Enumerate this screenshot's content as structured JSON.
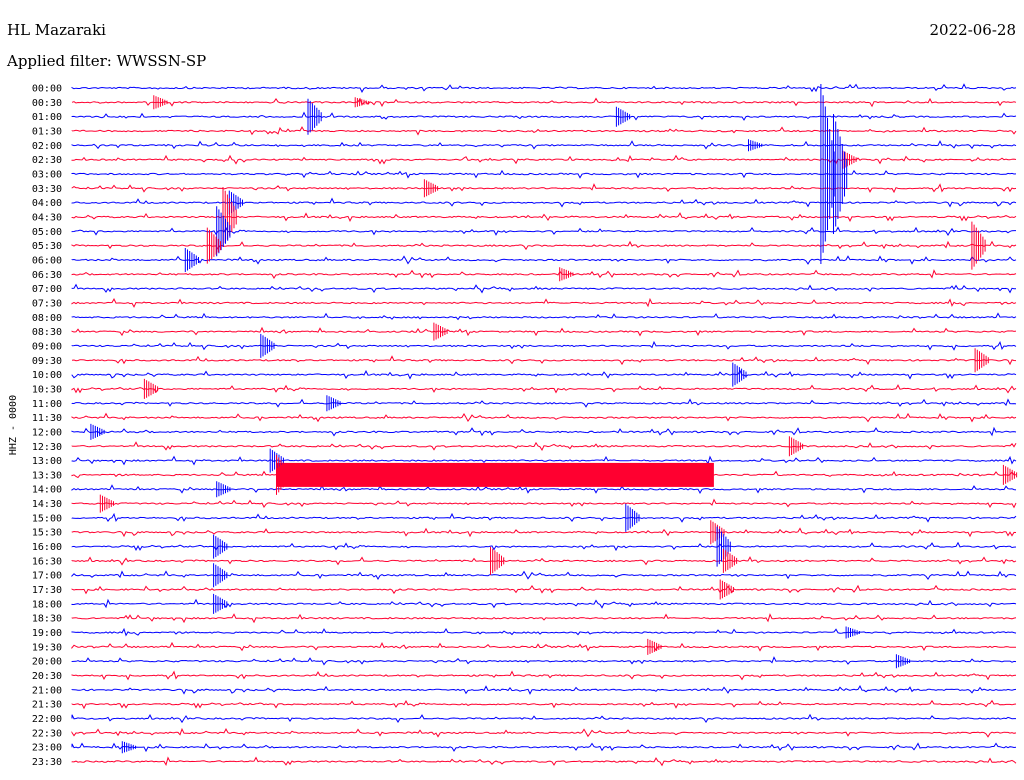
{
  "header": {
    "station": "HL Mazaraki",
    "date": "2022-06-28",
    "filter": "Applied filter: WWSSN-SP"
  },
  "chart_data": {
    "type": "line",
    "title": "HL Mazaraki",
    "subtitle": "Applied filter: WWSSN-SP",
    "date": "2022-06-28",
    "ylabel": "HHZ - 0000",
    "grid": false,
    "trace_colors": [
      "#0000ff",
      "#ff0030"
    ],
    "row_labels": [
      "00:00",
      "00:30",
      "01:00",
      "01:30",
      "02:00",
      "02:30",
      "03:00",
      "03:30",
      "04:00",
      "04:30",
      "05:00",
      "05:30",
      "06:00",
      "06:30",
      "07:00",
      "07:30",
      "08:00",
      "08:30",
      "09:00",
      "09:30",
      "10:00",
      "10:30",
      "11:00",
      "11:30",
      "12:00",
      "12:30",
      "13:00",
      "13:30",
      "14:00",
      "14:30",
      "15:00",
      "15:30",
      "16:00",
      "16:30",
      "17:00",
      "17:30",
      "18:00",
      "18:30",
      "19:00",
      "19:30",
      "20:00",
      "20:30",
      "21:00",
      "21:30",
      "22:00",
      "22:30",
      "23:00",
      "23:30"
    ],
    "x_range_minutes": [
      0,
      30
    ],
    "events": [
      {
        "row": 1,
        "minute": 2.6,
        "amp": 7
      },
      {
        "row": 1,
        "minute": 9.0,
        "amp": 5
      },
      {
        "row": 2,
        "minute": 7.5,
        "amp": 18
      },
      {
        "row": 2,
        "minute": 17.3,
        "amp": 10
      },
      {
        "row": 4,
        "minute": 21.5,
        "amp": 6
      },
      {
        "row": 5,
        "minute": 24.5,
        "amp": 9
      },
      {
        "row": 6,
        "minute": 23.8,
        "amp": 90
      },
      {
        "row": 6,
        "minute": 24.2,
        "amp": 60
      },
      {
        "row": 7,
        "minute": 11.2,
        "amp": 9
      },
      {
        "row": 8,
        "minute": 5.0,
        "amp": 12
      },
      {
        "row": 9,
        "minute": 4.8,
        "amp": 30
      },
      {
        "row": 10,
        "minute": 4.6,
        "amp": 25
      },
      {
        "row": 11,
        "minute": 4.3,
        "amp": 18
      },
      {
        "row": 11,
        "minute": 28.6,
        "amp": 24
      },
      {
        "row": 12,
        "minute": 3.6,
        "amp": 12
      },
      {
        "row": 13,
        "minute": 15.5,
        "amp": 7
      },
      {
        "row": 17,
        "minute": 11.5,
        "amp": 9
      },
      {
        "row": 18,
        "minute": 6.0,
        "amp": 12
      },
      {
        "row": 19,
        "minute": 28.7,
        "amp": 12
      },
      {
        "row": 20,
        "minute": 21.0,
        "amp": 12
      },
      {
        "row": 21,
        "minute": 2.3,
        "amp": 10
      },
      {
        "row": 22,
        "minute": 8.1,
        "amp": 8
      },
      {
        "row": 24,
        "minute": 0.6,
        "amp": 8
      },
      {
        "row": 25,
        "minute": 22.8,
        "amp": 10
      },
      {
        "row": 26,
        "minute": 6.3,
        "amp": 12
      },
      {
        "row": 27,
        "minute": 6.5,
        "amp": 20
      },
      {
        "row": 27,
        "minute": 29.6,
        "amp": 10
      },
      {
        "row": 28,
        "minute": 4.6,
        "amp": 8
      },
      {
        "row": 29,
        "minute": 0.9,
        "amp": 9
      },
      {
        "row": 30,
        "minute": 17.6,
        "amp": 14
      },
      {
        "row": 31,
        "minute": 20.3,
        "amp": 12
      },
      {
        "row": 32,
        "minute": 4.5,
        "amp": 12
      },
      {
        "row": 32,
        "minute": 20.5,
        "amp": 20
      },
      {
        "row": 33,
        "minute": 13.3,
        "amp": 14
      },
      {
        "row": 33,
        "minute": 20.7,
        "amp": 12
      },
      {
        "row": 34,
        "minute": 4.5,
        "amp": 12
      },
      {
        "row": 35,
        "minute": 20.6,
        "amp": 10
      },
      {
        "row": 36,
        "minute": 4.5,
        "amp": 10
      },
      {
        "row": 38,
        "minute": 24.6,
        "amp": 6
      },
      {
        "row": 39,
        "minute": 18.3,
        "amp": 8
      },
      {
        "row": 40,
        "minute": 26.2,
        "amp": 7
      },
      {
        "row": 46,
        "minute": 1.6,
        "amp": 6
      }
    ],
    "noise_bursts": [
      {
        "row": 27,
        "minute_start": 6.5,
        "minute_end": 20.4,
        "amp": 12
      }
    ]
  },
  "colors": {
    "row_even": "#0000ff",
    "row_odd": "#ff0030",
    "text": "#000000",
    "background": "#ffffff"
  }
}
